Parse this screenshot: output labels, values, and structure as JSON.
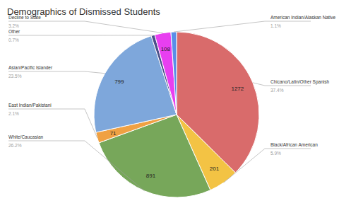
{
  "chart_data": {
    "type": "pie",
    "title": "Demographics of Dismissed Students",
    "categories": [
      "Chicano/Latin/Other Spanish",
      "Black/African American",
      "White/Caucasian",
      "East Indian/Pakistani",
      "Asian/Pacific Islander",
      "Other",
      "Decline to State",
      "American Indian/Alaskan Native"
    ],
    "values": [
      1272,
      201,
      891,
      71,
      799,
      24,
      108,
      37
    ],
    "value_labels": [
      "1272",
      "201",
      "891",
      "71",
      "799",
      null,
      "108",
      null
    ],
    "percent_labels": [
      "37.4%",
      "5.9%",
      "26.2%",
      "2.1%",
      "23.5%",
      "0.7%",
      "3.2%",
      "1.1%"
    ],
    "data_labels": true,
    "colors": [
      "#d96b6b",
      "#f3c344",
      "#77a75a",
      "#f0a143",
      "#7ea7db",
      "#4b4f8a",
      "#e83ff0",
      "#5a8ee8"
    ]
  }
}
